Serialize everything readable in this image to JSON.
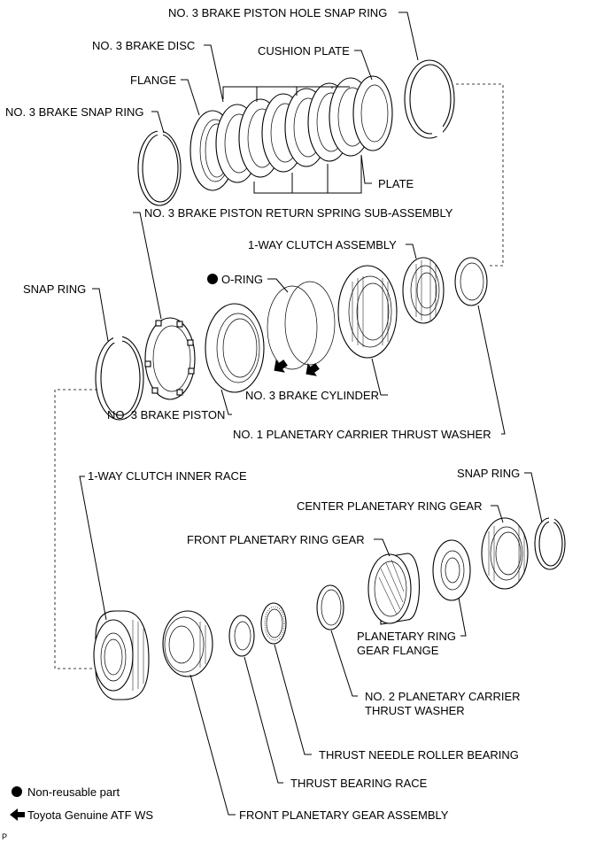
{
  "labels": {
    "no3_brake_piston_hole_snap_ring": "NO. 3 BRAKE PISTON HOLE SNAP RING",
    "no3_brake_disc": "NO. 3 BRAKE DISC",
    "cushion_plate": "CUSHION PLATE",
    "flange": "FLANGE",
    "no3_brake_snap_ring": "NO. 3 BRAKE SNAP RING",
    "plate": "PLATE",
    "no3_brake_piston_return_spring": "NO. 3 BRAKE PISTON RETURN SPRING SUB-ASSEMBLY",
    "one_way_clutch_assembly": "1-WAY CLUTCH ASSEMBLY",
    "o_ring": "O-RING",
    "snap_ring_upper": "SNAP RING",
    "no3_brake_cylinder": "NO. 3 BRAKE CYLINDER",
    "no3_brake_piston": "NO. 3 BRAKE PISTON",
    "no1_planetary_carrier_thrust_washer": "NO. 1 PLANETARY CARRIER THRUST WASHER",
    "one_way_clutch_inner_race": "1-WAY CLUTCH INNER RACE",
    "snap_ring_lower": "SNAP RING",
    "center_planetary_ring_gear": "CENTER PLANETARY RING GEAR",
    "front_planetary_ring_gear": "FRONT PLANETARY RING GEAR",
    "planetary_ring_gear_flange_1": "PLANETARY RING",
    "planetary_ring_gear_flange_2": "GEAR FLANGE",
    "no2_planetary_carrier_thrust_washer_1": "NO. 2 PLANETARY CARRIER",
    "no2_planetary_carrier_thrust_washer_2": "THRUST WASHER",
    "thrust_needle_roller_bearing": "THRUST NEEDLE ROLLER BEARING",
    "thrust_bearing_race": "THRUST BEARING RACE",
    "front_planetary_gear_assembly": "FRONT PLANETARY GEAR ASSEMBLY"
  },
  "legend": {
    "non_reusable": "Non-reusable part",
    "atf": "Toyota Genuine ATF WS"
  },
  "corner_mark": "P"
}
